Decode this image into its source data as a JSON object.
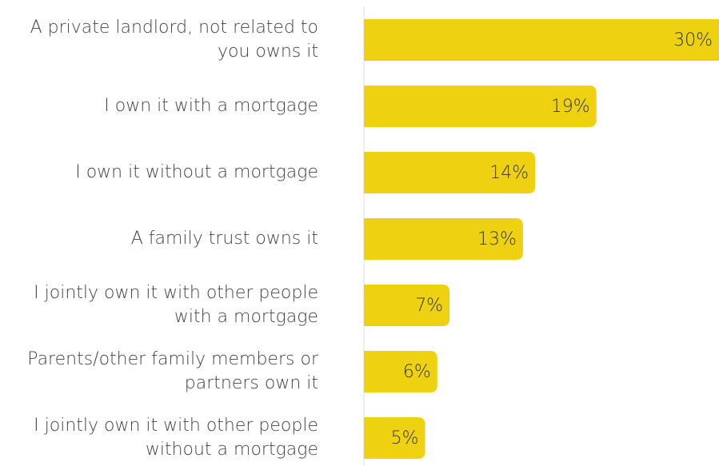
{
  "chart_data": {
    "type": "bar",
    "orientation": "horizontal",
    "categories": [
      "A private landlord, not related to you owns it",
      "I own it with a mortgage",
      "I own it without a mortgage",
      "A family trust owns it",
      "I jointly own it with other people with a mortgage",
      "Parents/other family members or partners own it",
      "I jointly own it with other people without a mortgage"
    ],
    "values": [
      30,
      19,
      14,
      13,
      7,
      6,
      5
    ],
    "value_labels": [
      "30%",
      "19%",
      "14%",
      "13%",
      "7%",
      "6%",
      "5%"
    ],
    "color": "#eed211"
  }
}
